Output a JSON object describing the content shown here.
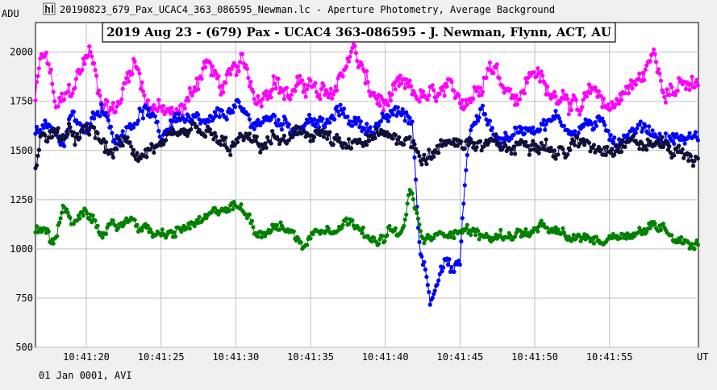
{
  "window": {
    "icon": "lightcurve-app-icon",
    "title": "20190823_679_Pax_UCAC4_363_086595_Newman.lc - Aperture Photometry, Average Background"
  },
  "footer": {
    "date_label": "01 Jan 0001, AVI"
  },
  "chart_data": {
    "type": "scatter",
    "title": "2019 Aug 23 - (679) Pax - UCAC4 363-086595 - J. Newman, Flynn, ACT, AU",
    "ylabel": "ADU",
    "xlabel": "UT",
    "ylim": [
      500,
      2150
    ],
    "xlim": [
      16.6,
      60.95
    ],
    "x_unit": "seconds after 10:41:00 UT",
    "grid": true,
    "yticks": [
      {
        "value": 500,
        "label": "500"
      },
      {
        "value": 750,
        "label": "750"
      },
      {
        "value": 1000,
        "label": "1000"
      },
      {
        "value": 1250,
        "label": "1250"
      },
      {
        "value": 1500,
        "label": "1500"
      },
      {
        "value": 1750,
        "label": "1750"
      },
      {
        "value": 2000,
        "label": "2000"
      }
    ],
    "xticks": [
      {
        "value": 20,
        "label": "10:41:20"
      },
      {
        "value": 25,
        "label": "10:41:25"
      },
      {
        "value": 30,
        "label": "10:41:30"
      },
      {
        "value": 35,
        "label": "10:41:35"
      },
      {
        "value": 40,
        "label": "10:41:40"
      },
      {
        "value": 45,
        "label": "10:41:45"
      },
      {
        "value": 50,
        "label": "10:41:50"
      },
      {
        "value": 55,
        "label": "10:41:55"
      }
    ],
    "series": [
      {
        "color": "#ff00ff",
        "profile": {
          "base": 1780,
          "amp": 130
        },
        "anchors": [
          [
            16.6,
            1760
          ],
          [
            17.0,
            1980
          ],
          [
            17.5,
            1930
          ],
          [
            18.0,
            1700
          ],
          [
            19.0,
            1800
          ],
          [
            20.2,
            2010
          ],
          [
            21.0,
            1760
          ],
          [
            22.0,
            1700
          ],
          [
            23.2,
            1980
          ],
          [
            24.0,
            1760
          ],
          [
            25.0,
            1700
          ],
          [
            26.0,
            1660
          ],
          [
            27.0,
            1780
          ],
          [
            28.0,
            1960
          ],
          [
            29.0,
            1820
          ],
          [
            30.5,
            1930
          ],
          [
            31.5,
            1760
          ],
          [
            32.5,
            1880
          ],
          [
            33.5,
            1780
          ],
          [
            35.0,
            1850
          ],
          [
            35.5,
            1760
          ],
          [
            36.5,
            1790
          ],
          [
            37.8,
            2020
          ],
          [
            38.5,
            1900
          ],
          [
            39.0,
            1790
          ],
          [
            40.0,
            1720
          ],
          [
            41.0,
            1810
          ],
          [
            42.0,
            1780
          ],
          [
            43.0,
            1760
          ],
          [
            44.0,
            1780
          ],
          [
            45.0,
            1760
          ],
          [
            46.0,
            1800
          ],
          [
            47.0,
            1960
          ],
          [
            48.0,
            1840
          ],
          [
            49.0,
            1780
          ],
          [
            50.0,
            1930
          ],
          [
            51.0,
            1760
          ],
          [
            52.0,
            1820
          ],
          [
            53.0,
            1680
          ],
          [
            54.0,
            1800
          ],
          [
            55.0,
            1720
          ],
          [
            56.0,
            1800
          ],
          [
            57.0,
            1850
          ],
          [
            58.0,
            1990
          ],
          [
            58.5,
            1850
          ],
          [
            59.5,
            1820
          ],
          [
            60.95,
            1820
          ]
        ]
      },
      {
        "color": "#0000ff",
        "profile": {
          "base": 1600,
          "amp": 90
        },
        "anchors": [
          [
            16.6,
            1590
          ],
          [
            17.5,
            1620
          ],
          [
            18.5,
            1550
          ],
          [
            19.0,
            1700
          ],
          [
            20.0,
            1600
          ],
          [
            21.0,
            1700
          ],
          [
            22.0,
            1560
          ],
          [
            23.0,
            1650
          ],
          [
            24.0,
            1720
          ],
          [
            25.0,
            1560
          ],
          [
            26.0,
            1680
          ],
          [
            27.0,
            1640
          ],
          [
            28.0,
            1620
          ],
          [
            30.0,
            1720
          ],
          [
            31.0,
            1640
          ],
          [
            32.5,
            1660
          ],
          [
            34.0,
            1620
          ],
          [
            35.0,
            1660
          ],
          [
            36.0,
            1620
          ],
          [
            37.0,
            1700
          ],
          [
            38.0,
            1640
          ],
          [
            39.0,
            1620
          ],
          [
            40.0,
            1650
          ],
          [
            41.0,
            1700
          ],
          [
            41.8,
            1640
          ],
          [
            42.3,
            1000
          ],
          [
            42.7,
            900
          ],
          [
            43.0,
            740
          ],
          [
            43.5,
            880
          ],
          [
            44.0,
            950
          ],
          [
            44.5,
            880
          ],
          [
            45.0,
            920
          ],
          [
            45.2,
            1200
          ],
          [
            45.6,
            1580
          ],
          [
            46.5,
            1700
          ],
          [
            47.5,
            1560
          ],
          [
            48.5,
            1580
          ],
          [
            49.5,
            1620
          ],
          [
            50.5,
            1640
          ],
          [
            51.5,
            1660
          ],
          [
            52.5,
            1600
          ],
          [
            53.5,
            1640
          ],
          [
            54.5,
            1620
          ],
          [
            55.5,
            1560
          ],
          [
            56.5,
            1600
          ],
          [
            57.5,
            1620
          ],
          [
            58.5,
            1560
          ],
          [
            59.5,
            1560
          ],
          [
            60.95,
            1560
          ]
        ]
      },
      {
        "color": "#101038",
        "profile": {
          "base": 1550,
          "amp": 100
        },
        "anchors": [
          [
            16.6,
            1400
          ],
          [
            17.0,
            1580
          ],
          [
            18.5,
            1580
          ],
          [
            19.5,
            1560
          ],
          [
            20.5,
            1600
          ],
          [
            21.5,
            1480
          ],
          [
            22.5,
            1540
          ],
          [
            23.5,
            1480
          ],
          [
            24.5,
            1520
          ],
          [
            25.5,
            1520
          ],
          [
            26.5,
            1560
          ],
          [
            27.5,
            1600
          ],
          [
            28.5,
            1560
          ],
          [
            29.5,
            1500
          ],
          [
            30.5,
            1560
          ],
          [
            31.5,
            1520
          ],
          [
            32.5,
            1560
          ],
          [
            33.5,
            1540
          ],
          [
            34.5,
            1580
          ],
          [
            35.5,
            1600
          ],
          [
            36.5,
            1540
          ],
          [
            37.5,
            1500
          ],
          [
            38.5,
            1540
          ],
          [
            39.5,
            1560
          ],
          [
            40.5,
            1580
          ],
          [
            41.5,
            1560
          ],
          [
            42.5,
            1480
          ],
          [
            43.5,
            1500
          ],
          [
            44.5,
            1560
          ],
          [
            45.5,
            1540
          ],
          [
            46.5,
            1520
          ],
          [
            47.5,
            1520
          ],
          [
            48.5,
            1500
          ],
          [
            49.5,
            1560
          ],
          [
            50.5,
            1560
          ],
          [
            51.5,
            1480
          ],
          [
            52.5,
            1520
          ],
          [
            53.5,
            1540
          ],
          [
            54.5,
            1520
          ],
          [
            55.5,
            1540
          ],
          [
            56.5,
            1560
          ],
          [
            57.5,
            1520
          ],
          [
            58.5,
            1540
          ],
          [
            59.5,
            1500
          ],
          [
            60.95,
            1460
          ]
        ]
      },
      {
        "color": "#008000",
        "profile": {
          "base": 1080,
          "amp": 70
        },
        "anchors": [
          [
            16.6,
            1080
          ],
          [
            17.2,
            1100
          ],
          [
            17.8,
            1020
          ],
          [
            18.5,
            1240
          ],
          [
            19.0,
            1120
          ],
          [
            20.0,
            1170
          ],
          [
            21.0,
            1100
          ],
          [
            22.0,
            1100
          ],
          [
            23.0,
            1160
          ],
          [
            24.0,
            1100
          ],
          [
            25.0,
            1060
          ],
          [
            26.0,
            1080
          ],
          [
            27.0,
            1120
          ],
          [
            28.0,
            1140
          ],
          [
            29.0,
            1200
          ],
          [
            30.0,
            1220
          ],
          [
            31.0,
            1160
          ],
          [
            31.5,
            1080
          ],
          [
            32.5,
            1120
          ],
          [
            33.5,
            1100
          ],
          [
            34.5,
            1020
          ],
          [
            35.5,
            1100
          ],
          [
            36.5,
            1120
          ],
          [
            37.5,
            1140
          ],
          [
            38.5,
            1120
          ],
          [
            39.5,
            1020
          ],
          [
            40.5,
            1100
          ],
          [
            41.0,
            1040
          ],
          [
            41.7,
            1300
          ],
          [
            42.5,
            1040
          ],
          [
            43.5,
            1060
          ],
          [
            44.5,
            1100
          ],
          [
            45.5,
            1100
          ],
          [
            46.5,
            1060
          ],
          [
            47.5,
            1060
          ],
          [
            48.5,
            1080
          ],
          [
            49.5,
            1080
          ],
          [
            50.5,
            1100
          ],
          [
            51.5,
            1080
          ],
          [
            52.5,
            1040
          ],
          [
            53.5,
            1060
          ],
          [
            54.5,
            1040
          ],
          [
            55.5,
            1080
          ],
          [
            56.5,
            1080
          ],
          [
            57.5,
            1100
          ],
          [
            58.5,
            1120
          ],
          [
            59.5,
            1060
          ],
          [
            60.95,
            1020
          ]
        ]
      }
    ]
  }
}
